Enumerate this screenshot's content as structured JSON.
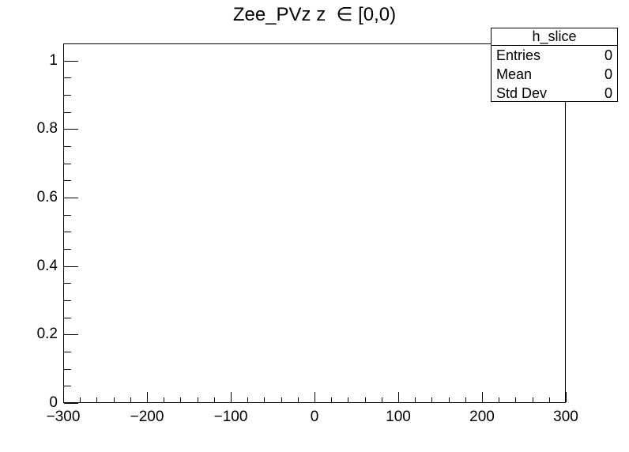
{
  "chart_data": {
    "type": "histogram",
    "title": "Zee_PVz z  ∈ [0,0)",
    "values": [],
    "entries": 0,
    "grid": false,
    "x": {
      "min": -300,
      "max": 300,
      "major_ticks": [
        -300,
        -200,
        -100,
        0,
        100,
        200,
        300
      ],
      "major_labels": [
        "−300",
        "−200",
        "−100",
        "0",
        "100",
        "200",
        "300"
      ],
      "minor_step": 20
    },
    "y": {
      "min": 0,
      "max": 1.05,
      "major_ticks": [
        0,
        0.2,
        0.4,
        0.6,
        0.8,
        1
      ],
      "major_labels": [
        "0",
        "0.2",
        "0.4",
        "0.6",
        "0.8",
        "1"
      ],
      "minor_step": 0.05
    }
  },
  "stats_box": {
    "title": "h_slice",
    "rows": [
      {
        "label": "Entries",
        "value": "0"
      },
      {
        "label": "Mean",
        "value": "0"
      },
      {
        "label": "Std Dev",
        "value": "0"
      }
    ]
  },
  "colors": {
    "foreground": "#000000",
    "background": "#ffffff"
  }
}
